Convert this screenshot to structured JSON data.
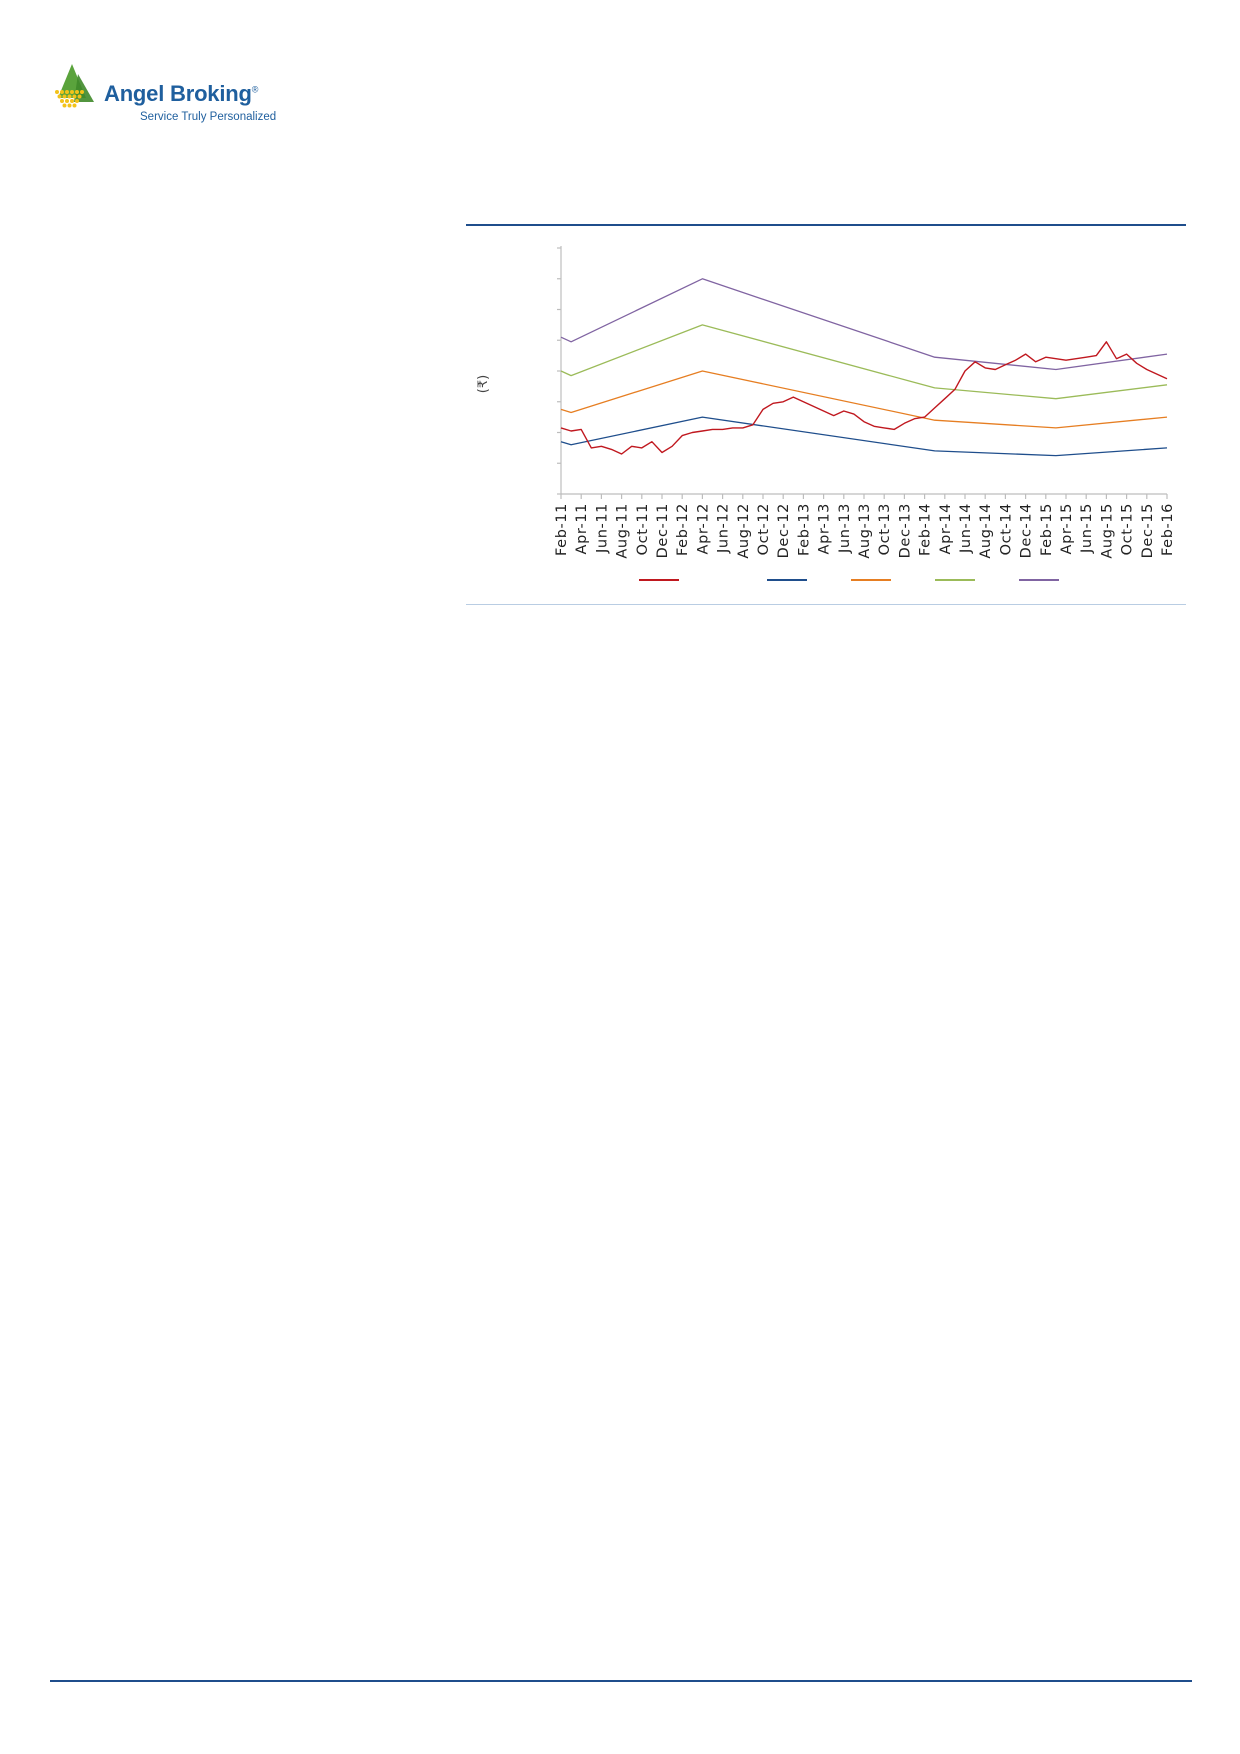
{
  "brand": {
    "name": "Angel Broking",
    "registered_mark": "®",
    "tagline": "Service Truly Personalized",
    "colors": {
      "primary": "#1f5f9e",
      "mark_green": "#5aa33c",
      "mark_yellow": "#f2c21a"
    }
  },
  "chart_data": {
    "type": "line",
    "ylabel": "(₹)",
    "grid": false,
    "legend_position": "bottom",
    "x_tick_labels": [
      "Feb-11",
      "Apr-11",
      "Jun-11",
      "Aug-11",
      "Oct-11",
      "Dec-11",
      "Feb-12",
      "Apr-12",
      "Jun-12",
      "Aug-12",
      "Oct-12",
      "Dec-12",
      "Feb-13",
      "Apr-13",
      "Jun-13",
      "Aug-13",
      "Oct-13",
      "Dec-13",
      "Feb-14",
      "Apr-14",
      "Jun-14",
      "Aug-14",
      "Oct-14",
      "Dec-14",
      "Feb-15",
      "Apr-15",
      "Jun-15",
      "Aug-15",
      "Oct-15",
      "Dec-15",
      "Feb-16"
    ],
    "x_range": [
      "Feb-11",
      "Feb-16"
    ],
    "y_range": [
      0,
      8
    ],
    "y_tick_count": 9,
    "series": [
      {
        "color": "#c0181f",
        "points": [
          [
            "Feb-11",
            2.15
          ],
          [
            "Mar-11",
            2.05
          ],
          [
            "Apr-11",
            2.1
          ],
          [
            "May-11",
            1.5
          ],
          [
            "Jun-11",
            1.55
          ],
          [
            "Jul-11",
            1.45
          ],
          [
            "Aug-11",
            1.3
          ],
          [
            "Sep-11",
            1.55
          ],
          [
            "Oct-11",
            1.5
          ],
          [
            "Nov-11",
            1.7
          ],
          [
            "Dec-11",
            1.35
          ],
          [
            "Jan-12",
            1.55
          ],
          [
            "Feb-12",
            1.9
          ],
          [
            "Mar-12",
            2.0
          ],
          [
            "Apr-12",
            2.05
          ],
          [
            "May-12",
            2.1
          ],
          [
            "Jun-12",
            2.1
          ],
          [
            "Jul-12",
            2.15
          ],
          [
            "Aug-12",
            2.15
          ],
          [
            "Sep-12",
            2.25
          ],
          [
            "Oct-12",
            2.75
          ],
          [
            "Nov-12",
            2.95
          ],
          [
            "Dec-12",
            3.0
          ],
          [
            "Jan-13",
            3.15
          ],
          [
            "Feb-13",
            3.0
          ],
          [
            "Mar-13",
            2.85
          ],
          [
            "Apr-13",
            2.7
          ],
          [
            "May-13",
            2.55
          ],
          [
            "Jun-13",
            2.7
          ],
          [
            "Jul-13",
            2.6
          ],
          [
            "Aug-13",
            2.35
          ],
          [
            "Sep-13",
            2.2
          ],
          [
            "Oct-13",
            2.15
          ],
          [
            "Nov-13",
            2.1
          ],
          [
            "Dec-13",
            2.3
          ],
          [
            "Jan-14",
            2.45
          ],
          [
            "Feb-14",
            2.5
          ],
          [
            "Mar-14",
            2.8
          ],
          [
            "Apr-14",
            3.1
          ],
          [
            "May-14",
            3.4
          ],
          [
            "Jun-14",
            4.0
          ],
          [
            "Jul-14",
            4.3
          ],
          [
            "Aug-14",
            4.1
          ],
          [
            "Sep-14",
            4.05
          ],
          [
            "Oct-14",
            4.2
          ],
          [
            "Nov-14",
            4.35
          ],
          [
            "Dec-14",
            4.55
          ],
          [
            "Jan-15",
            4.3
          ],
          [
            "Feb-15",
            4.45
          ],
          [
            "Mar-15",
            4.4
          ],
          [
            "Apr-15",
            4.35
          ],
          [
            "May-15",
            4.4
          ],
          [
            "Jun-15",
            4.45
          ],
          [
            "Jul-15",
            4.5
          ],
          [
            "Aug-15",
            4.95
          ],
          [
            "Sep-15",
            4.4
          ],
          [
            "Oct-15",
            4.55
          ],
          [
            "Nov-15",
            4.25
          ],
          [
            "Dec-15",
            4.05
          ],
          [
            "Jan-16",
            3.9
          ],
          [
            "Feb-16",
            3.75
          ]
        ]
      },
      {
        "color": "#1f4e8c",
        "points": [
          [
            "Feb-11",
            1.7
          ],
          [
            "Mar-11",
            1.6
          ],
          [
            "Apr-12",
            2.5
          ],
          [
            "Mar-14",
            1.4
          ],
          [
            "Mar-15",
            1.25
          ],
          [
            "Feb-16",
            1.5
          ]
        ]
      },
      {
        "color": "#e67e22",
        "points": [
          [
            "Feb-11",
            2.75
          ],
          [
            "Mar-11",
            2.65
          ],
          [
            "Apr-12",
            4.0
          ],
          [
            "Mar-14",
            2.4
          ],
          [
            "Mar-15",
            2.15
          ],
          [
            "Feb-16",
            2.5
          ]
        ]
      },
      {
        "color": "#9bbb59",
        "points": [
          [
            "Feb-11",
            4.0
          ],
          [
            "Mar-11",
            3.85
          ],
          [
            "Apr-12",
            5.5
          ],
          [
            "Mar-14",
            3.45
          ],
          [
            "Mar-15",
            3.1
          ],
          [
            "Feb-16",
            3.55
          ]
        ]
      },
      {
        "color": "#8064a2",
        "points": [
          [
            "Feb-11",
            5.1
          ],
          [
            "Mar-11",
            4.95
          ],
          [
            "Apr-12",
            7.0
          ],
          [
            "Mar-14",
            4.45
          ],
          [
            "Mar-15",
            4.05
          ],
          [
            "Feb-16",
            4.55
          ]
        ]
      }
    ]
  }
}
